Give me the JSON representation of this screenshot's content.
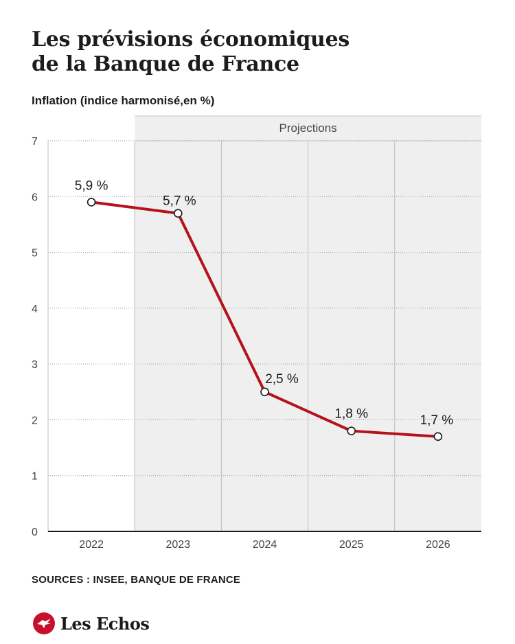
{
  "title": {
    "line1": "Les prévisions économiques",
    "line2": "de la Banque de France"
  },
  "subtitle": "Inflation (indice harmonisé,en %)",
  "projection_band_label": "Projections",
  "source": "SOURCES : INSEE, BANQUE DE FRANCE",
  "logo": {
    "name": "Les Echos",
    "icon": "les-echos-logo-icon"
  },
  "colors": {
    "line": "#b5121b",
    "projection_band": "#efefef",
    "grid": "#9a9a9a",
    "axis": "#1a1a1a",
    "brand": "#c8102e"
  },
  "chart_data": {
    "type": "line",
    "title": "Les prévisions économiques de la Banque de France",
    "ylabel": "Inflation (indice harmonisé,en %)",
    "xlabel": "",
    "categories": [
      "2022",
      "2023",
      "2024",
      "2025",
      "2026"
    ],
    "values": [
      5.9,
      5.7,
      2.5,
      1.8,
      1.7
    ],
    "data_labels": [
      "5,9 %",
      "5,7 %",
      "2,5 %",
      "1,8 %",
      "1,7 %"
    ],
    "ylim": [
      0,
      7
    ],
    "yticks": [
      0,
      1,
      2,
      3,
      4,
      5,
      6,
      7
    ],
    "grid": true,
    "projection_start": "2023",
    "legend": "none"
  }
}
